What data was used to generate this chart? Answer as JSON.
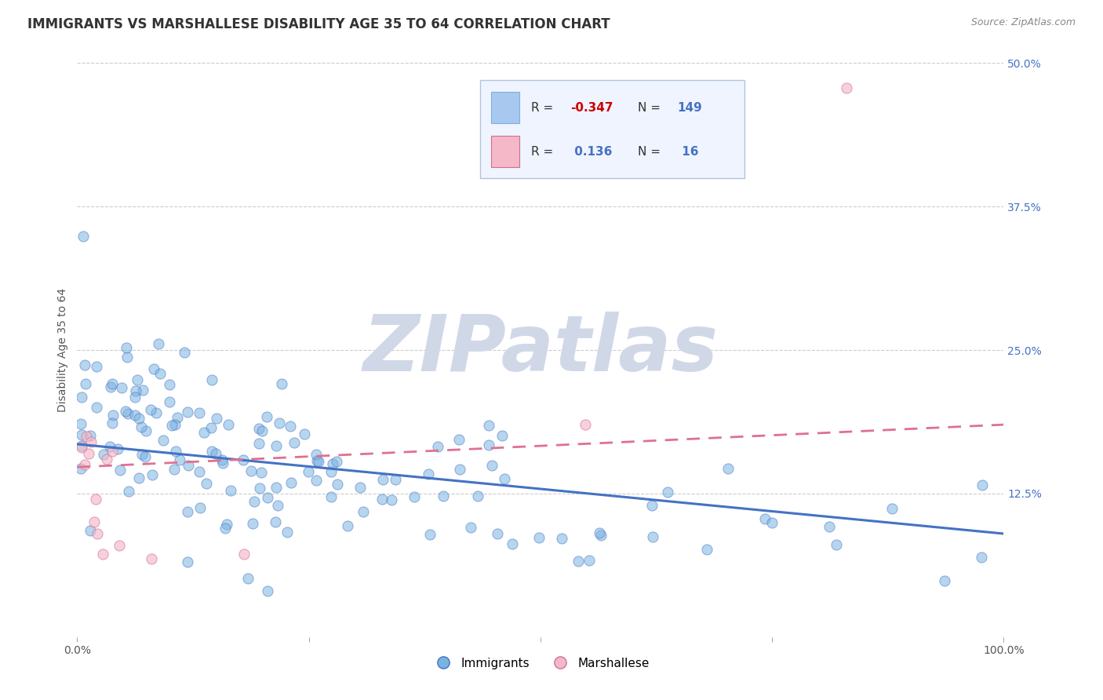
{
  "title": "IMMIGRANTS VS MARSHALLESE DISABILITY AGE 35 TO 64 CORRELATION CHART",
  "source": "Source: ZipAtlas.com",
  "ylabel": "Disability Age 35 to 64",
  "xlim": [
    0.0,
    1.0
  ],
  "ylim": [
    0.0,
    0.5
  ],
  "immigrants_color": "#7ab3e0",
  "immigrants_edge": "#4472c4",
  "marshallese_color": "#f4b8c8",
  "marshallese_edge": "#d07090",
  "imm_trend_color": "#4472c4",
  "marsh_trend_color": "#e07090",
  "background_color": "#ffffff",
  "grid_color": "#cccccc",
  "title_color": "#333333",
  "source_color": "#888888",
  "ytick_color": "#4472c4",
  "legend_border": "#b0c4de",
  "legend_bg": "#f0f4ff",
  "watermark_text": "ZIPatlas",
  "watermark_color": "#d0d8e8",
  "title_fontsize": 12,
  "axis_label_fontsize": 10,
  "tick_fontsize": 10,
  "legend_fontsize": 11,
  "imm_trend_y0": 0.168,
  "imm_trend_y1": 0.09,
  "marsh_trend_y0": 0.148,
  "marsh_trend_y1": 0.185
}
